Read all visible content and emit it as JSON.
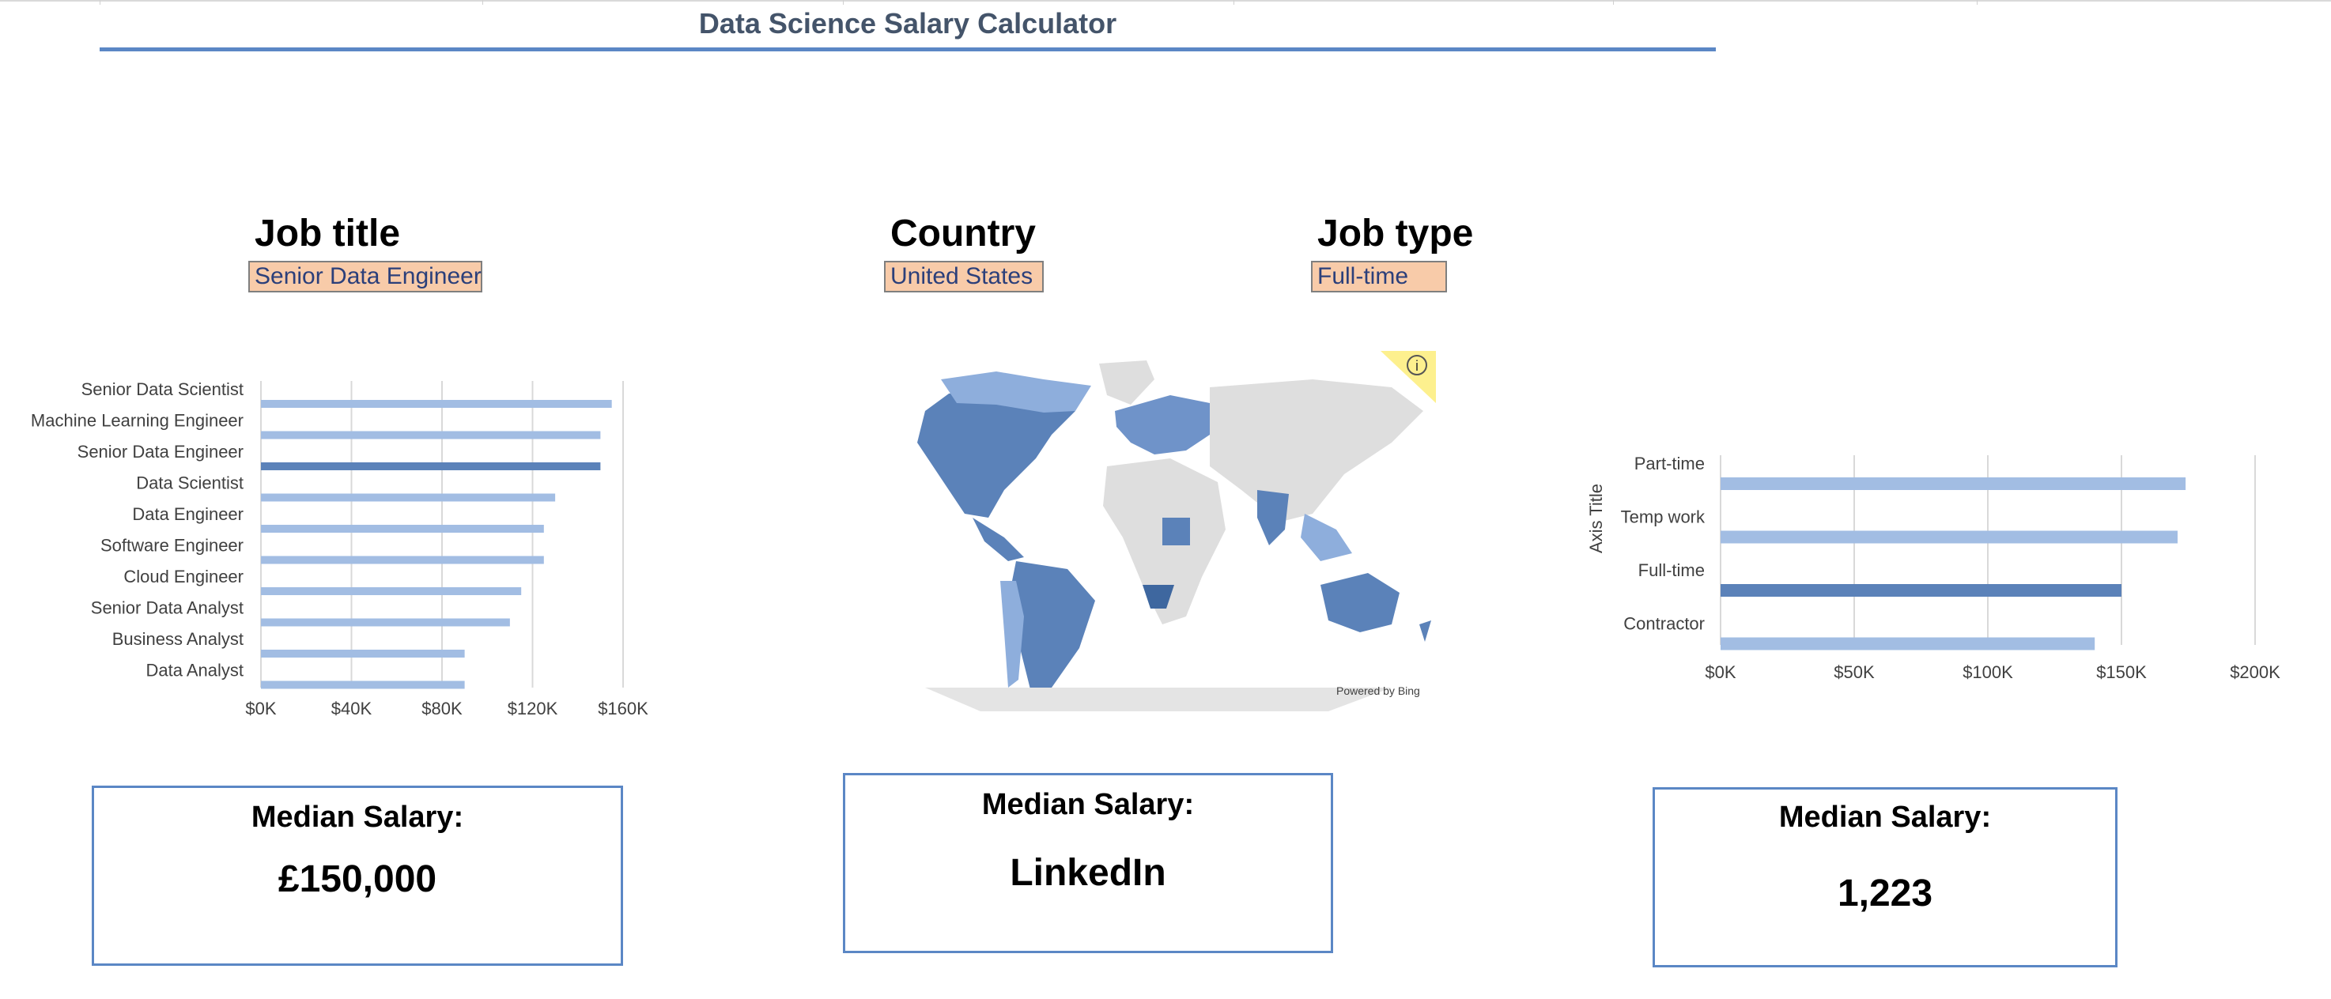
{
  "title": "Data Science Salary Calculator",
  "filters": {
    "job_title": {
      "label": "Job title",
      "value": "Senior Data Engineer"
    },
    "country": {
      "label": "Country",
      "value": "United States"
    },
    "job_type": {
      "label": "Job type",
      "value": "Full-time"
    }
  },
  "colors": {
    "bar": "#a2bde3",
    "highlight": "#5b82b9",
    "card_border": "#5b87c5",
    "field_fill": "#f8cba9",
    "title_text": "#44546a"
  },
  "map": {
    "powered_by": "Powered by Bing",
    "info_icon": "info-icon"
  },
  "cards": [
    {
      "heading": "Median Salary:",
      "value": "£150,000"
    },
    {
      "heading": "Median Salary:",
      "value": "LinkedIn"
    },
    {
      "heading": "Median Salary:",
      "value": "1,223"
    }
  ],
  "chart_data": [
    {
      "type": "bar",
      "orientation": "horizontal",
      "categories": [
        "Senior Data Scientist",
        "Machine Learning Engineer",
        "Senior Data Engineer",
        "Data Scientist",
        "Data Engineer",
        "Software Engineer",
        "Cloud Engineer",
        "Senior Data Analyst",
        "Business Analyst",
        "Data Analyst"
      ],
      "values": [
        155000,
        150000,
        150000,
        130000,
        125000,
        125000,
        115000,
        110000,
        90000,
        90000
      ],
      "highlight": "Senior Data Engineer",
      "xlim": [
        0,
        160000
      ],
      "xticks": [
        "$0K",
        "$40K",
        "$80K",
        "$120K",
        "$160K"
      ],
      "grid": true
    },
    {
      "type": "bar",
      "orientation": "horizontal",
      "categories": [
        "Part-time",
        "Temp work",
        "Full-time",
        "Contractor"
      ],
      "values": [
        174000,
        171000,
        150000,
        140000
      ],
      "highlight": "Full-time",
      "xlim": [
        0,
        200000
      ],
      "xticks": [
        "$0K",
        "$50K",
        "$100K",
        "$150K",
        "$200K"
      ],
      "ylabel": "Axis Title",
      "grid": true
    }
  ]
}
